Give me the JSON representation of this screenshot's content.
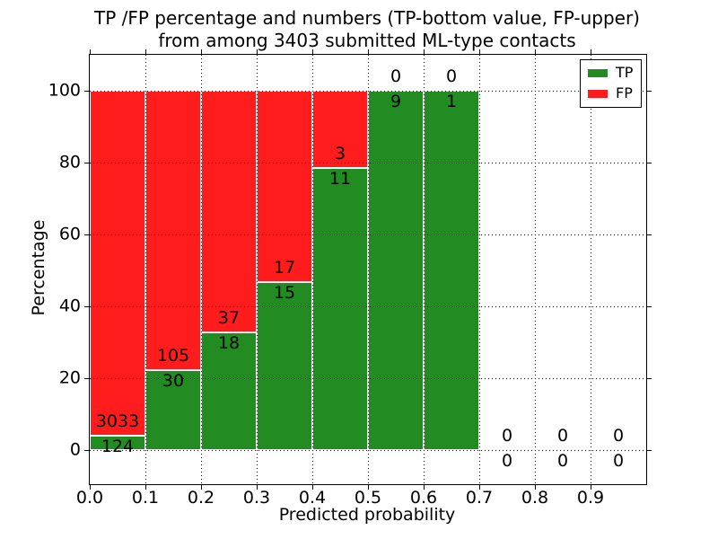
{
  "title": {
    "line1": "TP /FP percentage and numbers (TP-bottom value, FP-upper)",
    "line2": "from among 3403 submitted ML-type contacts"
  },
  "axes": {
    "xlabel": "Predicted probability",
    "ylabel": "Percentage",
    "xticks": [
      "0.0",
      "0.1",
      "0.2",
      "0.3",
      "0.4",
      "0.5",
      "0.6",
      "0.7",
      "0.8",
      "0.9"
    ],
    "yticks": [
      "0",
      "20",
      "40",
      "60",
      "80",
      "100"
    ]
  },
  "legend": {
    "position": "upper right",
    "items": [
      {
        "label": "TP",
        "color": "#228b22"
      },
      {
        "label": "FP",
        "color": "#ff1c1c"
      }
    ]
  },
  "colors": {
    "tp": "#228b22",
    "fp": "#ff1c1c",
    "bar_edge": "#ffffff",
    "grid": "#000000",
    "axis": "#000000",
    "background": "#ffffff"
  },
  "chart_data": {
    "type": "bar",
    "stacked": true,
    "normalized_to_percent": true,
    "title": "TP /FP percentage and numbers (TP-bottom value, FP-upper) from among 3403 submitted ML-type contacts",
    "xlabel": "Predicted probability",
    "ylabel": "Percentage",
    "xlim": [
      0.0,
      1.0
    ],
    "ylim": [
      -9.5,
      110
    ],
    "grid": true,
    "legend_position": "upper right",
    "bin_width": 0.1,
    "bin_starts": [
      0.0,
      0.1,
      0.2,
      0.3,
      0.4,
      0.5,
      0.6,
      0.7,
      0.8,
      0.9
    ],
    "series": [
      {
        "name": "TP",
        "color": "#228b22",
        "counts": [
          124,
          30,
          18,
          15,
          11,
          9,
          1,
          0,
          0,
          0
        ]
      },
      {
        "name": "FP",
        "color": "#ff1c1c",
        "counts": [
          3033,
          105,
          37,
          17,
          3,
          0,
          0,
          0,
          0,
          0
        ]
      }
    ],
    "tp_percent_by_bin": [
      3.93,
      22.22,
      32.73,
      46.88,
      78.57,
      100.0,
      100.0,
      null,
      null,
      null
    ],
    "total_contacts": 3403
  }
}
